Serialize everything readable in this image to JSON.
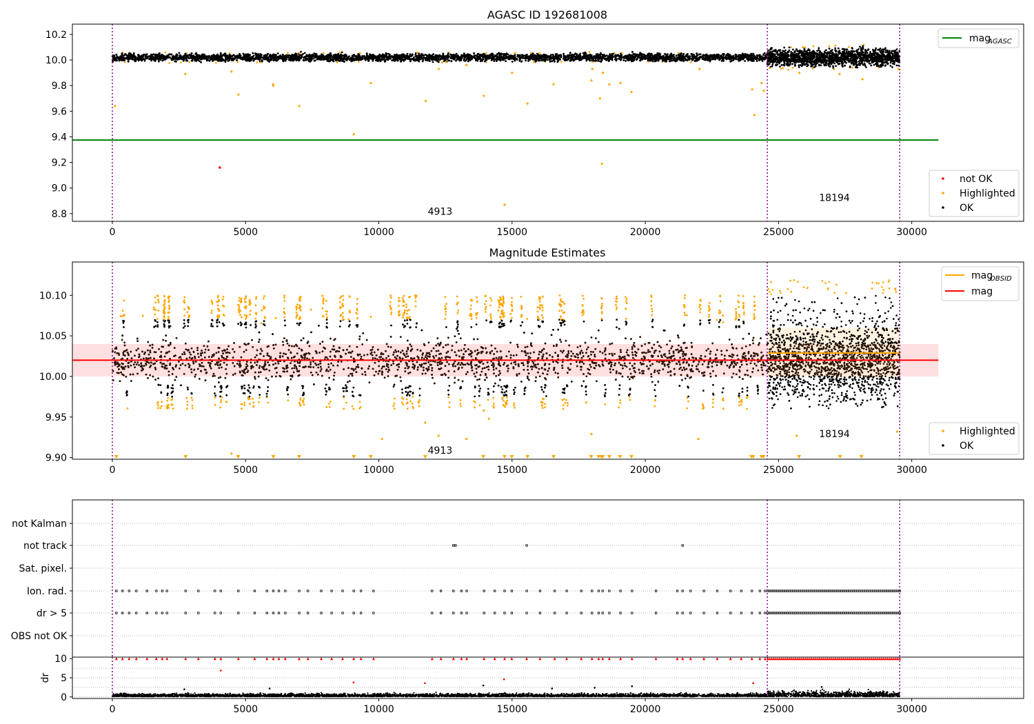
{
  "colors": {
    "ok": "#000000",
    "highlighted": "#ffa500",
    "not_ok": "#ff0000",
    "agasc_line": "#008000",
    "obsid_line": "#ffa500",
    "mag_line": "#ff0000",
    "mag_band": "#ffe0e0",
    "obs_boundary": "#8b008b",
    "grid": "#b0b0b0"
  },
  "chart_data": [
    {
      "type": "scatter",
      "title": "AGASC ID 192681008",
      "xlim": [
        -1500,
        34200
      ],
      "ylim": [
        8.74,
        10.28
      ],
      "xticks": [
        0,
        5000,
        10000,
        15000,
        20000,
        25000,
        30000
      ],
      "xtick_labels": [
        "0",
        "5000",
        "10000",
        "15000",
        "20000",
        "25000",
        "30000"
      ],
      "yticks": [
        8.8,
        9.0,
        9.2,
        9.4,
        9.6,
        9.8,
        10.0,
        10.2
      ],
      "ytick_labels": [
        "8.8",
        "9.0",
        "9.2",
        "9.4",
        "9.6",
        "9.8",
        "10.0",
        "10.2"
      ],
      "obs_boundaries": [
        0,
        24580,
        29550
      ],
      "obs_labels": [
        {
          "text": "4913",
          "x": 12300,
          "y": 8.79
        },
        {
          "text": "18194",
          "x": 27100,
          "y": 8.9
        }
      ],
      "lines": [
        {
          "name": "mag_AGASC",
          "y": 9.375,
          "x": [
            -1500,
            31000
          ]
        }
      ],
      "bands": [
        {
          "x": [
            0,
            24580
          ],
          "y_center": 10.02,
          "y_spread": 0.03,
          "n": 5200
        },
        {
          "x": [
            24580,
            29550
          ],
          "y_center": 10.02,
          "y_spread": 0.07,
          "n": 1500
        }
      ],
      "highlighted_points": [
        [
          100,
          9.64
        ],
        [
          2740,
          9.89
        ],
        [
          4470,
          9.91
        ],
        [
          4730,
          9.73
        ],
        [
          6030,
          9.81
        ],
        [
          6040,
          9.8
        ],
        [
          7010,
          9.64
        ],
        [
          9060,
          9.42
        ],
        [
          9700,
          9.82
        ],
        [
          11760,
          9.68
        ],
        [
          12250,
          9.93
        ],
        [
          13290,
          9.96
        ],
        [
          13940,
          9.72
        ],
        [
          14720,
          8.87
        ],
        [
          15000,
          9.9
        ],
        [
          15580,
          9.66
        ],
        [
          16560,
          9.81
        ],
        [
          17980,
          9.84
        ],
        [
          18010,
          9.93
        ],
        [
          18300,
          9.7
        ],
        [
          18410,
          9.9
        ],
        [
          18650,
          9.81
        ],
        [
          19070,
          9.82
        ],
        [
          19480,
          9.75
        ],
        [
          18370,
          9.19
        ],
        [
          22030,
          9.93
        ],
        [
          24010,
          9.77
        ],
        [
          24100,
          9.57
        ],
        [
          24370,
          9.82
        ],
        [
          24450,
          9.76
        ],
        [
          25780,
          9.9
        ],
        [
          27290,
          9.89
        ],
        [
          28150,
          9.85
        ],
        [
          29500,
          9.93
        ]
      ],
      "not_ok_points": [
        [
          4030,
          9.16
        ]
      ],
      "legend": [
        {
          "label": "mag",
          "subscript": "AGASC",
          "kind": "line"
        },
        {
          "label": "not OK",
          "kind": "marker"
        },
        {
          "label": "Highlighted",
          "kind": "marker"
        },
        {
          "label": "OK",
          "kind": "marker"
        }
      ]
    },
    {
      "type": "scatter",
      "title": "Magnitude Estimates",
      "xlim": [
        -1500,
        34200
      ],
      "ylim": [
        9.898,
        10.141
      ],
      "xticks": [
        0,
        5000,
        10000,
        15000,
        20000,
        25000,
        30000
      ],
      "xtick_labels": [
        "0",
        "5000",
        "10000",
        "15000",
        "20000",
        "25000",
        "30000"
      ],
      "yticks": [
        9.9,
        9.95,
        10.0,
        10.05,
        10.1
      ],
      "ytick_labels": [
        "9.90",
        "9.95",
        "10.00",
        "10.05",
        "10.10"
      ],
      "obs_boundaries": [
        0,
        24580,
        29550
      ],
      "obs_labels": [
        {
          "text": "4913",
          "x": 12300,
          "y": 9.905
        },
        {
          "text": "18194",
          "x": 27100,
          "y": 9.925
        }
      ],
      "lines": [
        {
          "name": "mag",
          "y": 10.02,
          "x": [
            -1500,
            31000
          ]
        },
        {
          "name": "mag_OBSID",
          "y": 10.029,
          "x": [
            24580,
            29550
          ]
        }
      ],
      "mag_band": {
        "y": [
          10.0,
          10.04
        ],
        "x": [
          -1500,
          31000
        ]
      },
      "obsid_band": {
        "y": [
          10.0,
          10.06
        ],
        "x": [
          24580,
          29550
        ]
      },
      "highlighted_points": [
        [
          11740,
          9.943
        ],
        [
          12240,
          9.927
        ],
        [
          13290,
          9.923
        ],
        [
          10120,
          9.923
        ],
        [
          13940,
          9.958
        ],
        [
          14130,
          9.948
        ],
        [
          17980,
          9.929
        ],
        [
          21990,
          9.923
        ],
        [
          4470,
          9.905
        ],
        [
          25680,
          9.927
        ],
        [
          29450,
          9.932
        ]
      ],
      "below_axis_markers": [
        150,
        2750,
        4720,
        6040,
        7010,
        9060,
        9700,
        11740,
        13920,
        14720,
        14990,
        15580,
        16560,
        17970,
        18250,
        18350,
        18400,
        18650,
        19060,
        19480,
        23980,
        24050,
        24360,
        24430,
        25770,
        27310,
        28110
      ],
      "legend": [
        {
          "label": "mag",
          "subscript": "OBSID",
          "kind": "line"
        },
        {
          "label": "mag",
          "kind": "line"
        },
        {
          "label": "Highlighted",
          "kind": "marker"
        },
        {
          "label": "OK",
          "kind": "marker"
        }
      ]
    },
    {
      "type": "scatter",
      "title": "",
      "xlim": [
        -1500,
        34200
      ],
      "categories": [
        "not Kalman",
        "not track",
        "Sat. pixel.",
        "Ion. rad.",
        "dr > 5",
        "OBS not OK"
      ],
      "obs_boundaries": [
        0,
        24580,
        29550
      ],
      "flag_points": {
        "not track": [
          12800,
          12880,
          15550,
          21400
        ],
        "Ion. rad.": [
          150,
          380,
          630,
          900,
          1300,
          1650,
          1870,
          2050,
          2750,
          3230,
          3850,
          4070,
          4730,
          5340,
          5800,
          6040,
          6250,
          6490,
          7010,
          7340,
          7840,
          8230,
          8640,
          9060,
          9330,
          9800,
          12000,
          12330,
          12800,
          13100,
          13300,
          13950,
          14350,
          14720,
          14990,
          15550,
          16050,
          16600,
          17050,
          17600,
          18000,
          18250,
          18400,
          18650,
          19070,
          19500,
          20400,
          21200,
          21400,
          21700,
          22200,
          22700,
          23200,
          23600,
          24000,
          24300,
          24500
        ],
        "dr > 5": [
          150,
          380,
          630,
          900,
          1300,
          1650,
          1870,
          2050,
          2750,
          3230,
          3850,
          4070,
          4730,
          5340,
          5800,
          6040,
          6250,
          6490,
          7010,
          7340,
          7840,
          8230,
          8640,
          9060,
          9330,
          9800,
          12000,
          12330,
          12800,
          13100,
          13300,
          13950,
          14350,
          14720,
          14990,
          15550,
          16050,
          16600,
          17050,
          17600,
          18000,
          18250,
          18400,
          18650,
          19070,
          19500,
          20400,
          21200,
          21400,
          21700,
          22200,
          22700,
          23200,
          23600,
          24000,
          24300,
          24500
        ]
      },
      "dense_flag_range": [
        24600,
        29550
      ]
    },
    {
      "type": "scatter",
      "title": "",
      "ylabel": "dr",
      "xlim": [
        -1500,
        34200
      ],
      "ylim": [
        -0.4,
        10.4
      ],
      "xticks": [
        0,
        5000,
        10000,
        15000,
        20000,
        25000,
        30000
      ],
      "xtick_labels": [
        "0",
        "5000",
        "10000",
        "15000",
        "20000",
        "25000",
        "30000"
      ],
      "yticks": [
        0,
        5,
        10
      ],
      "ytick_labels": [
        "0",
        "5",
        "10"
      ],
      "obs_boundaries": [
        0,
        24580,
        29550
      ],
      "clipped_at": 10,
      "outlier_points": [
        [
          4070,
          6.9
        ],
        [
          9050,
          3.8
        ],
        [
          11730,
          3.6
        ],
        [
          13920,
          3.0
        ],
        [
          14700,
          4.6
        ],
        [
          24050,
          3.6
        ],
        [
          18100,
          2.4
        ],
        [
          19500,
          2.8
        ],
        [
          26620,
          2.6
        ],
        [
          5900,
          2.2
        ],
        [
          2700,
          2.0
        ],
        [
          16500,
          2.2
        ]
      ]
    }
  ]
}
